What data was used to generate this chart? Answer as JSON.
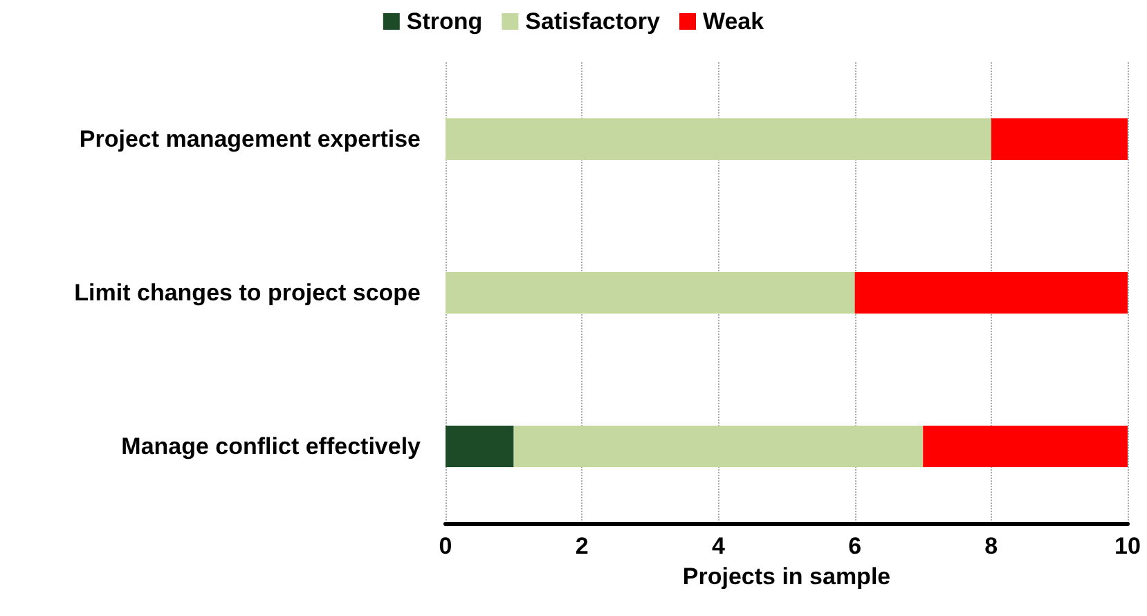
{
  "chart_data": {
    "type": "bar",
    "orientation": "horizontal",
    "stacked": true,
    "xlabel": "Projects in sample",
    "categories": [
      "Project management expertise",
      "Limit changes to project scope",
      "Manage conflict effectively"
    ],
    "series": [
      {
        "name": "Strong",
        "color": "#1e4b27",
        "values": [
          0,
          0,
          1
        ]
      },
      {
        "name": "Satisfactory",
        "color": "#c4d8a0",
        "values": [
          8,
          6,
          6
        ]
      },
      {
        "name": "Weak",
        "color": "#ff0000",
        "values": [
          2,
          4,
          3
        ]
      }
    ],
    "xlim": [
      0,
      10
    ],
    "xticks": [
      0,
      2,
      4,
      6,
      8,
      10
    ],
    "grid": "x",
    "legend": "top"
  }
}
